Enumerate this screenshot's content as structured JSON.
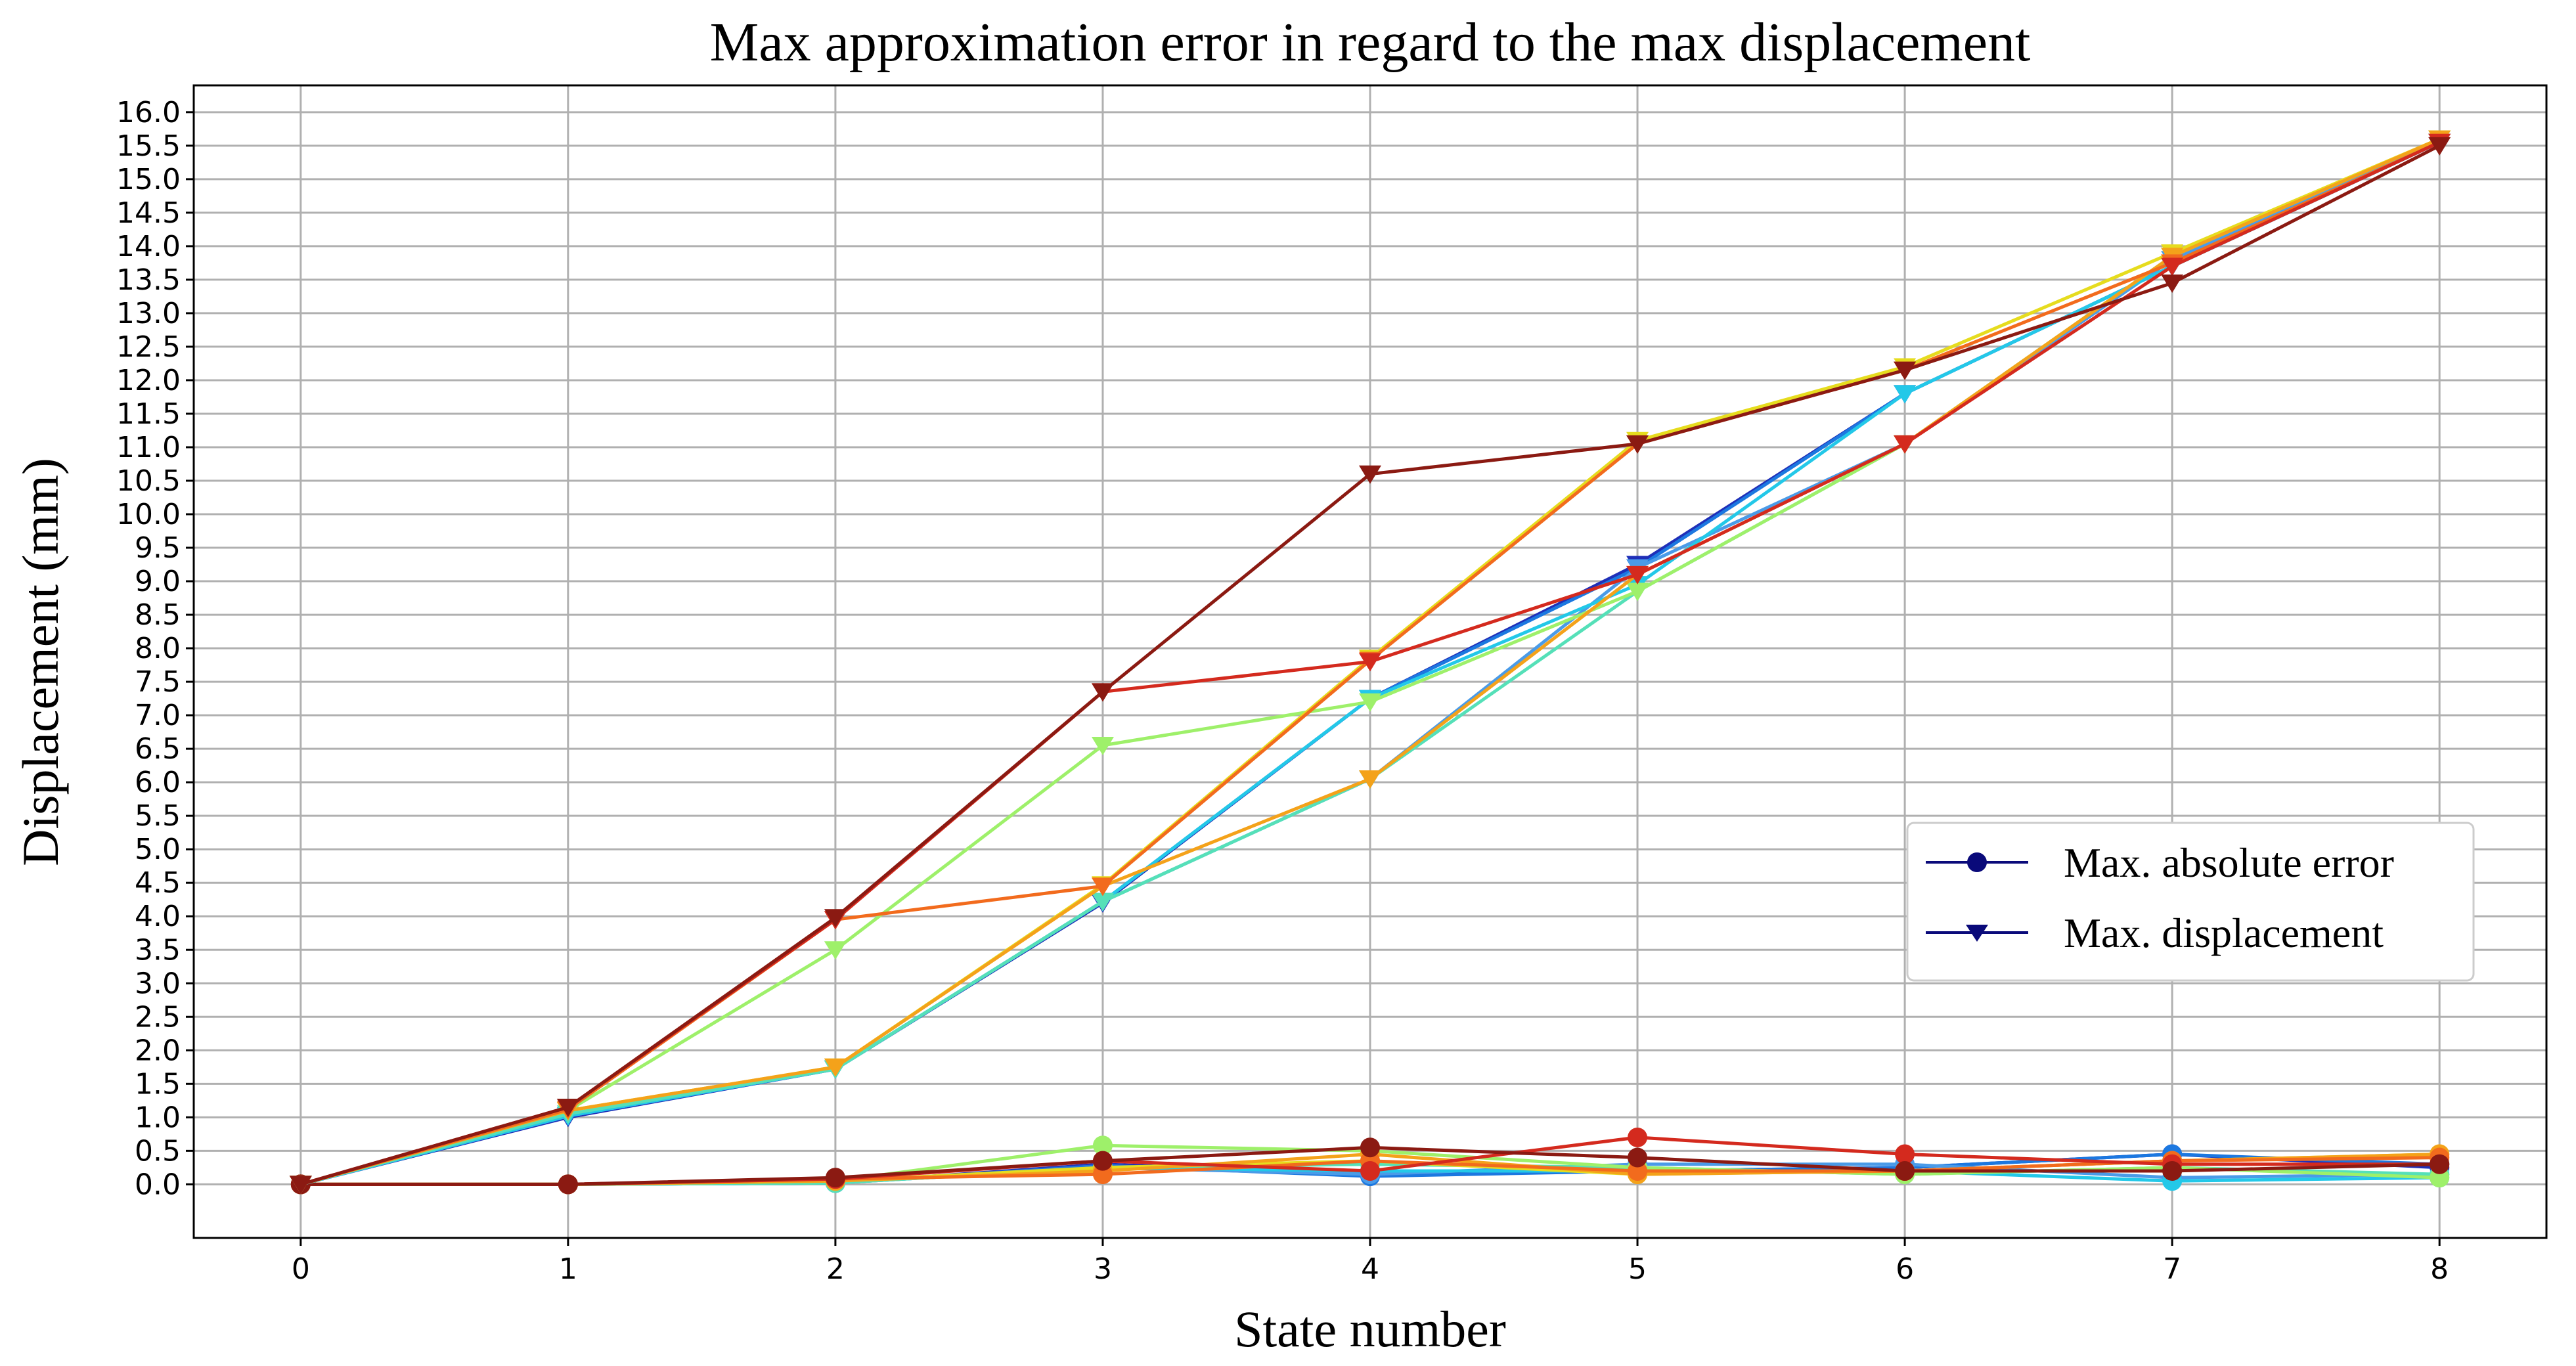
{
  "chart_data": {
    "type": "line",
    "title": "Max approximation error in regard to the max displacement",
    "xlabel": "State number",
    "ylabel": "Displacement (mm)",
    "x": [
      0,
      1,
      2,
      3,
      4,
      5,
      6,
      7,
      8
    ],
    "xlim": [
      -0.4,
      8.4
    ],
    "ylim": [
      -0.8,
      16.4
    ],
    "x_ticks": [
      0,
      1,
      2,
      3,
      4,
      5,
      6,
      7,
      8
    ],
    "y_ticks": [
      0.0,
      0.5,
      1.0,
      1.5,
      2.0,
      2.5,
      3.0,
      3.5,
      4.0,
      4.5,
      5.0,
      5.5,
      6.0,
      6.5,
      7.0,
      7.5,
      8.0,
      8.5,
      9.0,
      9.5,
      10.0,
      10.5,
      11.0,
      11.5,
      12.0,
      12.5,
      13.0,
      13.5,
      14.0,
      14.5,
      15.0,
      15.5,
      16.0
    ],
    "grid": true,
    "legend": {
      "placement": "center-right",
      "entries": [
        {
          "label": "Max. absolute error",
          "marker": "circle",
          "color": "#0a0a7a"
        },
        {
          "label": "Max. displacement",
          "marker": "triangle-down",
          "color": "#0a0a7a"
        }
      ]
    },
    "displacement_series": [
      {
        "color": "#1f2fb8",
        "marker": "triangle-down",
        "values": [
          0.0,
          1.0,
          1.72,
          4.2,
          7.25,
          9.25,
          11.8,
          13.7,
          15.55
        ]
      },
      {
        "color": "#1c78e0",
        "marker": "triangle-down",
        "values": [
          0.0,
          1.02,
          1.72,
          4.22,
          7.25,
          9.2,
          11.8,
          13.7,
          15.55
        ]
      },
      {
        "color": "#4a9be8",
        "marker": "triangle-down",
        "values": [
          0.0,
          1.02,
          1.72,
          4.22,
          6.05,
          9.2,
          11.05,
          13.8,
          15.6
        ]
      },
      {
        "color": "#23c8e8",
        "marker": "triangle-down",
        "values": [
          0.0,
          1.02,
          1.72,
          4.22,
          7.25,
          8.95,
          11.8,
          13.7,
          15.55
        ]
      },
      {
        "color": "#55e0b8",
        "marker": "triangle-down",
        "values": [
          0.0,
          1.05,
          1.72,
          4.22,
          6.05,
          8.85,
          11.05,
          13.85,
          15.6
        ]
      },
      {
        "color": "#9ef06a",
        "marker": "triangle-down",
        "values": [
          0.0,
          1.1,
          3.5,
          6.55,
          7.2,
          8.85,
          11.05,
          13.85,
          15.6
        ]
      },
      {
        "color": "#e6dc1e",
        "marker": "triangle-down",
        "values": [
          0.0,
          1.1,
          1.75,
          4.47,
          7.85,
          11.1,
          12.2,
          13.9,
          15.6
        ]
      },
      {
        "color": "#f4a21a",
        "marker": "triangle-down",
        "values": [
          0.0,
          1.1,
          1.75,
          4.45,
          6.05,
          9.1,
          11.05,
          13.85,
          15.6
        ]
      },
      {
        "color": "#f26b1d",
        "marker": "triangle-down",
        "values": [
          0.0,
          1.12,
          3.95,
          4.45,
          7.82,
          11.05,
          12.15,
          13.75,
          15.55
        ]
      },
      {
        "color": "#d42a1e",
        "marker": "triangle-down",
        "values": [
          0.0,
          1.15,
          3.95,
          7.35,
          7.8,
          9.1,
          11.05,
          13.7,
          15.55
        ]
      },
      {
        "color": "#8b1a12",
        "marker": "triangle-down",
        "values": [
          0.0,
          1.15,
          3.98,
          7.35,
          10.6,
          11.05,
          12.15,
          13.45,
          15.5
        ]
      }
    ],
    "error_series": [
      {
        "color": "#1f2fb8",
        "marker": "circle",
        "values": [
          0.0,
          0.0,
          0.02,
          0.3,
          0.15,
          0.2,
          0.25,
          0.45,
          0.25
        ]
      },
      {
        "color": "#1c78e0",
        "marker": "circle",
        "values": [
          0.0,
          0.0,
          0.02,
          0.28,
          0.12,
          0.2,
          0.25,
          0.45,
          0.3
        ]
      },
      {
        "color": "#4a9be8",
        "marker": "circle",
        "values": [
          0.0,
          0.0,
          0.02,
          0.25,
          0.15,
          0.3,
          0.3,
          0.1,
          0.15
        ]
      },
      {
        "color": "#23c8e8",
        "marker": "circle",
        "values": [
          0.0,
          0.0,
          0.02,
          0.25,
          0.2,
          0.2,
          0.2,
          0.05,
          0.1
        ]
      },
      {
        "color": "#55e0b8",
        "marker": "circle",
        "values": [
          0.0,
          0.0,
          0.02,
          0.25,
          0.3,
          0.25,
          0.15,
          0.25,
          0.15
        ]
      },
      {
        "color": "#9ef06a",
        "marker": "circle",
        "values": [
          0.0,
          0.0,
          0.05,
          0.58,
          0.5,
          0.25,
          0.15,
          0.25,
          0.1
        ]
      },
      {
        "color": "#e6dc1e",
        "marker": "circle",
        "values": [
          0.0,
          0.0,
          0.05,
          0.25,
          0.35,
          0.15,
          0.2,
          0.35,
          0.45
        ]
      },
      {
        "color": "#f4a21a",
        "marker": "circle",
        "values": [
          0.0,
          0.0,
          0.05,
          0.2,
          0.45,
          0.15,
          0.2,
          0.35,
          0.45
        ]
      },
      {
        "color": "#f26b1d",
        "marker": "circle",
        "values": [
          0.0,
          0.0,
          0.08,
          0.15,
          0.35,
          0.2,
          0.2,
          0.35,
          0.4
        ]
      },
      {
        "color": "#d42a1e",
        "marker": "circle",
        "values": [
          0.0,
          0.0,
          0.08,
          0.35,
          0.2,
          0.7,
          0.45,
          0.3,
          0.3
        ]
      },
      {
        "color": "#8b1a12",
        "marker": "circle",
        "values": [
          0.0,
          0.0,
          0.1,
          0.35,
          0.55,
          0.4,
          0.2,
          0.2,
          0.3
        ]
      }
    ]
  }
}
